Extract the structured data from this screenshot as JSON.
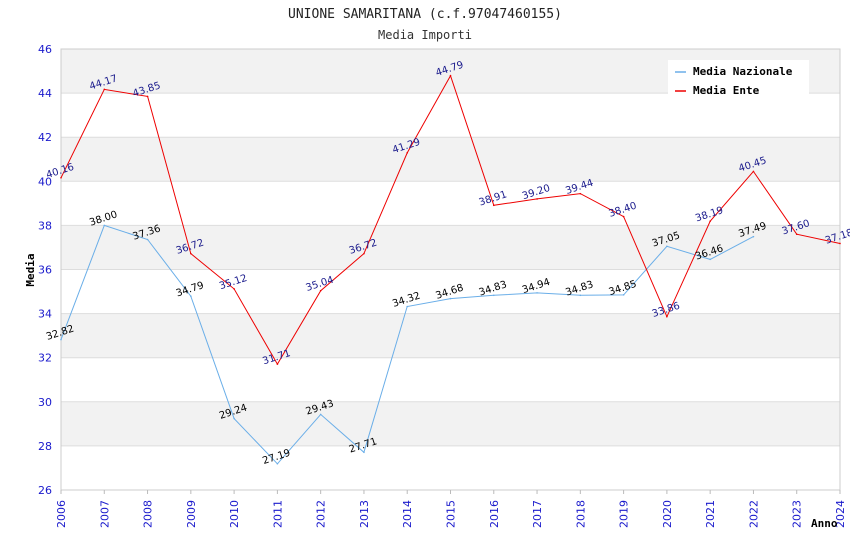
{
  "chart_data": {
    "type": "line",
    "title": "UNIONE SAMARITANA (c.f.97047460155)",
    "subtitle": "Media Importi",
    "xlabel": "Anno",
    "ylabel": "Media",
    "ylim": [
      26,
      46
    ],
    "yticks": [
      "26",
      "28",
      "30",
      "32",
      "34",
      "36",
      "38",
      "40",
      "42",
      "44",
      "46"
    ],
    "x": [
      "2006",
      "2007",
      "2008",
      "2009",
      "2010",
      "2011",
      "2012",
      "2013",
      "2014",
      "2015",
      "2016",
      "2017",
      "2018",
      "2019",
      "2020",
      "2021",
      "2022",
      "2023",
      "2024"
    ],
    "grid": true,
    "legend_position": "top-right",
    "series": [
      {
        "name": "Media Nazionale",
        "color": "#6aaee8",
        "values": [
          32.82,
          38.0,
          37.36,
          34.79,
          29.24,
          27.19,
          29.43,
          27.71,
          34.32,
          34.68,
          34.83,
          34.94,
          34.83,
          34.85,
          37.05,
          36.46,
          37.49,
          null,
          null
        ],
        "labels": [
          "32.82",
          "38.00",
          "37.36",
          "34.79",
          "29.24",
          "27.19",
          "29.43",
          "27.71",
          "34.32",
          "34.68",
          "34.83",
          "34.94",
          "34.83",
          "34.85",
          "37.05",
          "36.46",
          "37.49",
          null,
          null
        ]
      },
      {
        "name": "Media Ente",
        "color": "#ee0000",
        "values": [
          40.16,
          44.17,
          43.85,
          36.72,
          35.12,
          31.71,
          35.04,
          36.72,
          41.29,
          44.79,
          38.91,
          39.2,
          39.44,
          38.4,
          33.86,
          38.19,
          40.45,
          37.6,
          37.18
        ],
        "labels": [
          "40.16",
          "44.17",
          "43.85",
          "36.72",
          "35.12",
          "31.71",
          "35.04",
          "36.72",
          "41.29",
          "44.79",
          "38.91",
          "39.20",
          "39.44",
          "38.40",
          "33.86",
          "38.19",
          "40.45",
          "37.60",
          "37.18"
        ]
      }
    ]
  }
}
